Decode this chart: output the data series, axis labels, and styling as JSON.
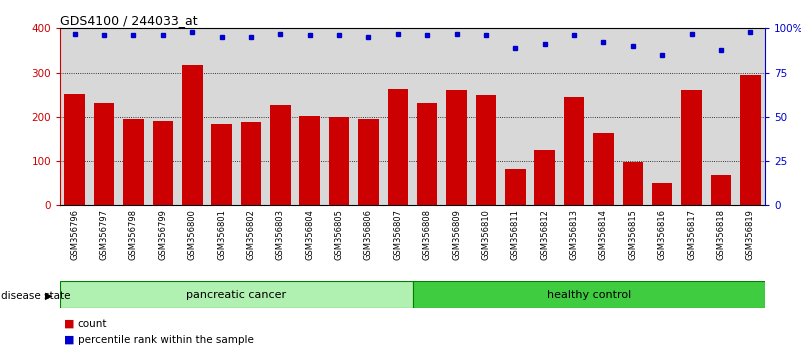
{
  "title": "GDS4100 / 244033_at",
  "samples": [
    "GSM356796",
    "GSM356797",
    "GSM356798",
    "GSM356799",
    "GSM356800",
    "GSM356801",
    "GSM356802",
    "GSM356803",
    "GSM356804",
    "GSM356805",
    "GSM356806",
    "GSM356807",
    "GSM356808",
    "GSM356809",
    "GSM356810",
    "GSM356811",
    "GSM356812",
    "GSM356813",
    "GSM356814",
    "GSM356815",
    "GSM356816",
    "GSM356817",
    "GSM356818",
    "GSM356819"
  ],
  "counts": [
    252,
    232,
    196,
    191,
    318,
    183,
    188,
    227,
    202,
    200,
    196,
    263,
    232,
    261,
    250,
    83,
    124,
    244,
    163,
    98,
    50,
    261,
    68,
    295
  ],
  "percentiles": [
    97,
    96,
    96,
    96,
    98,
    95,
    95,
    97,
    96,
    96,
    95,
    97,
    96,
    97,
    96,
    89,
    91,
    96,
    92,
    90,
    85,
    97,
    88,
    98
  ],
  "bar_color": "#cc0000",
  "dot_color": "#0000cc",
  "ylim_left": [
    0,
    400
  ],
  "ylim_right": [
    0,
    100
  ],
  "yticks_left": [
    0,
    100,
    200,
    300,
    400
  ],
  "yticks_right": [
    0,
    25,
    50,
    75,
    100
  ],
  "yticklabels_right": [
    "0",
    "25",
    "50",
    "75",
    "100%"
  ],
  "bg_color": "#d8d8d8",
  "pancreatic_color": "#b0f0b0",
  "healthy_color": "#40cc40",
  "group_edge_color": "#008000"
}
